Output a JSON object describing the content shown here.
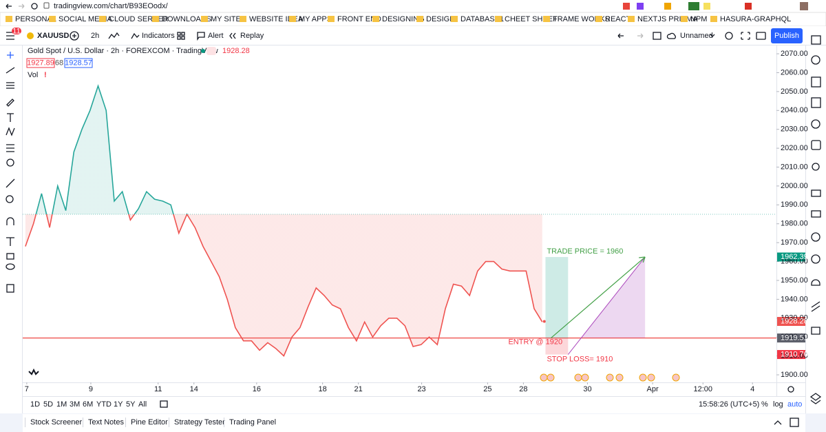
{
  "browser": {
    "url": "tradingview.com/chart/B93EOodx/",
    "bookmarks": [
      "PERSONAL",
      "SOCIAL MEDIA",
      "CLOUD SERVER",
      "DOWNLOADS",
      "MY SITES",
      "WEBSITE IDEA",
      "MY APPS",
      "FRONT END",
      "DESIGNING",
      "DESIGN",
      "DATABASE1",
      "CHEET SHEET",
      "FRAME WORKS",
      "REACT",
      "NEXTJS PRISMA",
      "NPM",
      "HASURA-GRAPHQL"
    ]
  },
  "toolbar": {
    "notifications": "11",
    "symbol": "XAUUSD",
    "interval": "2h",
    "indicators": "Indicators",
    "alert": "Alert",
    "replay": "Replay",
    "layout_name": "Unnamed",
    "publish": "Publish"
  },
  "legend": {
    "title": "Gold Spot / U.S. Dollar · 2h · FOREXCOM · TradingView",
    "bid": 1927.89,
    "spread": 68,
    "ask": 1928.57,
    "volume": "Vol"
  },
  "chart_data": {
    "type": "line",
    "x": [
      1,
      4,
      7,
      10,
      13,
      16,
      19,
      22,
      25,
      28,
      31,
      34,
      37,
      40,
      43,
      46,
      49,
      52,
      55,
      58,
      61,
      64,
      67,
      70,
      73,
      76,
      79,
      82,
      85,
      88,
      91,
      94,
      97,
      100,
      103,
      106,
      109,
      112,
      115,
      118,
      121,
      124,
      127,
      130,
      133,
      136,
      139,
      142,
      145,
      148,
      151,
      154,
      157,
      160,
      163,
      166,
      169,
      172,
      175,
      178,
      181,
      184,
      187,
      190,
      193
    ],
    "values": [
      1968,
      1980,
      1996,
      1978,
      2000,
      1987,
      2018,
      2030,
      2040,
      2053,
      2040,
      1992,
      1997,
      1982,
      1988,
      1997,
      1993,
      1992,
      1990,
      1975,
      1985,
      1978,
      1968,
      1960,
      1952,
      1940,
      1925,
      1918,
      1918,
      1913,
      1917,
      1914,
      1910,
      1920,
      1925,
      1936,
      1946,
      1942,
      1937,
      1935,
      1925,
      1918,
      1928,
      1920,
      1926,
      1930,
      1930,
      1926,
      1915,
      1916,
      1920,
      1916,
      1935,
      1948,
      1947,
      1942,
      1955,
      1960,
      1960,
      1956,
      1955,
      1955,
      1955,
      1935,
      1928
    ],
    "baseline": 1985,
    "up_color": "#26a69a",
    "down_color": "#ef5350",
    "last_price": 1928.28,
    "xlim": [
      0,
      280
    ],
    "xticks": [
      {
        "value": 1.5,
        "label": "7"
      },
      {
        "value": 25.3,
        "label": "9"
      },
      {
        "value": 50.3,
        "label": "11"
      },
      {
        "value": 63.6,
        "label": "14"
      },
      {
        "value": 86.9,
        "label": "16"
      },
      {
        "value": 111.4,
        "label": "18"
      },
      {
        "value": 124.7,
        "label": "21"
      },
      {
        "value": 148.2,
        "label": "23"
      },
      {
        "value": 172.7,
        "label": "25"
      },
      {
        "value": 186,
        "label": "28"
      },
      {
        "value": 209.8,
        "label": "30"
      },
      {
        "value": 234,
        "label": "Apr"
      },
      {
        "value": 252.7,
        "label": "12:00"
      },
      {
        "value": 271.1,
        "label": "4"
      }
    ],
    "ylim": [
      1896,
      2074.4
    ],
    "yticks": [
      {
        "value": 1900,
        "label": "1900.00"
      },
      {
        "value": 1910,
        "label": "1910.00"
      },
      {
        "value": 1920,
        "label": "1920.00"
      },
      {
        "value": 1930,
        "label": "1930.00"
      },
      {
        "value": 1940,
        "label": "1940.00"
      },
      {
        "value": 1950,
        "label": "1950.00"
      },
      {
        "value": 1960,
        "label": "1960.00"
      },
      {
        "value": 1970,
        "label": "1970.00"
      },
      {
        "value": 1980,
        "label": "1980.00"
      },
      {
        "value": 1990,
        "label": "1990.00"
      },
      {
        "value": 2000,
        "label": "2000.00"
      },
      {
        "value": 2010,
        "label": "2010.00"
      },
      {
        "value": 2020,
        "label": "2020.00"
      },
      {
        "value": 2030,
        "label": "2030.00"
      },
      {
        "value": 2040,
        "label": "2040.00"
      },
      {
        "value": 2050,
        "label": "2050.00"
      },
      {
        "value": 2060,
        "label": "2060.00"
      },
      {
        "value": 2070,
        "label": "2070.00"
      }
    ],
    "position": {
      "target": 1962.39,
      "entry": 1919.51,
      "stop": 1910.76,
      "x": [
        194.2,
        202.6,
        231.2
      ],
      "target_color": "#089981",
      "stop_color": "#f23645",
      "entry_color": "#5d606b",
      "target_label": "TRADE PRICE = 1960",
      "entry_label": "ENTRY @ 1920",
      "stop_label": "STOP LOSS= 1910"
    }
  },
  "range_bar": {
    "ranges": [
      "1D",
      "5D",
      "1M",
      "3M",
      "6M",
      "YTD",
      "1Y",
      "5Y",
      "All"
    ],
    "clock": "15:58:26 (UTC+5)",
    "percent": "%",
    "log": "log",
    "auto": "auto"
  },
  "bottom_tabs": [
    "Stock Screener",
    "Text Notes",
    "Pine Editor",
    "Strategy Tester",
    "Trading Panel"
  ]
}
